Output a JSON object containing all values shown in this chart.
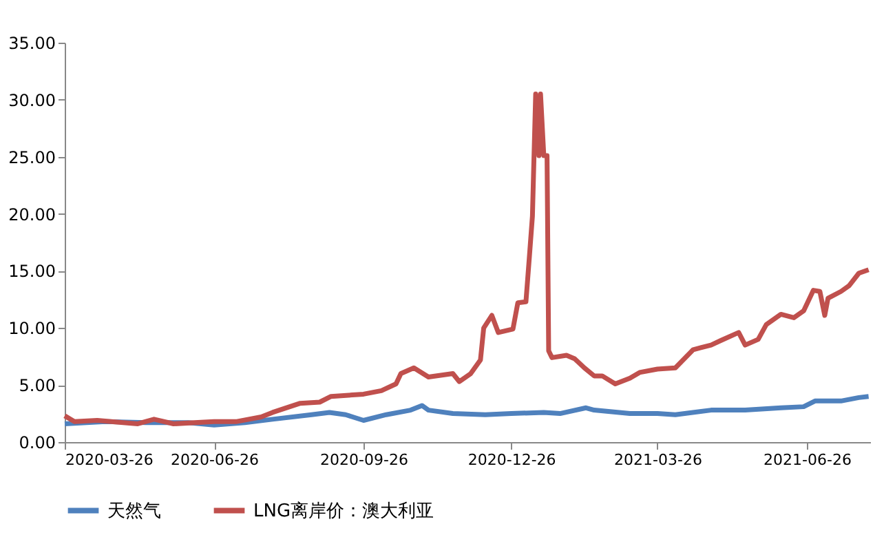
{
  "chart_data": {
    "type": "line",
    "xlim": [
      "2020-03-26",
      "2021-08-04"
    ],
    "xticks": [
      "2020-03-26",
      "2020-06-26",
      "2020-09-26",
      "2020-12-26",
      "2021-03-26",
      "2021-06-26"
    ],
    "ylim": [
      0,
      35
    ],
    "yticks": [
      {
        "value": 0,
        "label": "0.00"
      },
      {
        "value": 5,
        "label": "5.00"
      },
      {
        "value": 10,
        "label": "10.00"
      },
      {
        "value": 15,
        "label": "15.00"
      },
      {
        "value": 20,
        "label": "20.00"
      },
      {
        "value": 25,
        "label": "25.00"
      },
      {
        "value": 30,
        "label": "30.00"
      },
      {
        "value": 35,
        "label": "35.00"
      }
    ],
    "grid": false,
    "legend": "bottom",
    "marker": "none",
    "line_style": "solid",
    "series": [
      {
        "name": "天然气",
        "color": "#4f81bd",
        "x": [
          "2020-03-26",
          "2020-04-20",
          "2020-05-15",
          "2020-06-10",
          "2020-06-26",
          "2020-07-15",
          "2020-08-01",
          "2020-08-25",
          "2020-09-05",
          "2020-09-15",
          "2020-09-26",
          "2020-10-10",
          "2020-10-25",
          "2020-11-01",
          "2020-11-05",
          "2020-11-20",
          "2020-12-10",
          "2020-12-26",
          "2021-01-15",
          "2021-01-25",
          "2021-02-10",
          "2021-02-15",
          "2021-03-09",
          "2021-03-26",
          "2021-04-06",
          "2021-04-28",
          "2021-05-19",
          "2021-06-10",
          "2021-06-24",
          "2021-07-01",
          "2021-07-17",
          "2021-07-28",
          "2021-08-03"
        ],
        "values": [
          1.6,
          1.8,
          1.7,
          1.7,
          1.5,
          1.7,
          2.0,
          2.4,
          2.6,
          2.4,
          1.9,
          2.4,
          2.8,
          3.2,
          2.8,
          2.5,
          2.4,
          2.5,
          2.6,
          2.5,
          3.0,
          2.8,
          2.5,
          2.5,
          2.4,
          2.8,
          2.8,
          3.0,
          3.1,
          3.6,
          3.6,
          3.9,
          4.0
        ]
      },
      {
        "name": "LNG离岸价：澳大利亚",
        "color": "#c0504d",
        "x": [
          "2020-03-26",
          "2020-04-01",
          "2020-04-15",
          "2020-05-01",
          "2020-05-10",
          "2020-05-20",
          "2020-06-01",
          "2020-06-26",
          "2020-07-10",
          "2020-07-25",
          "2020-08-01",
          "2020-08-18",
          "2020-08-30",
          "2020-09-06",
          "2020-09-26",
          "2020-10-07",
          "2020-10-16",
          "2020-10-19",
          "2020-10-27",
          "2020-11-05",
          "2020-11-20",
          "2020-11-24",
          "2020-12-01",
          "2020-12-07",
          "2020-12-09",
          "2020-12-14",
          "2020-12-18",
          "2020-12-27",
          "2020-12-30",
          "2021-01-04",
          "2021-01-06",
          "2021-01-08",
          "2021-01-10",
          "2021-01-12",
          "2021-01-13",
          "2021-01-15",
          "2021-01-17",
          "2021-01-18",
          "2021-01-20",
          "2021-01-29",
          "2021-02-03",
          "2021-02-09",
          "2021-02-15",
          "2021-02-20",
          "2021-02-28",
          "2021-03-09",
          "2021-03-15",
          "2021-03-26",
          "2021-04-06",
          "2021-04-17",
          "2021-04-28",
          "2021-05-04",
          "2021-05-15",
          "2021-05-19",
          "2021-05-27",
          "2021-06-01",
          "2021-06-10",
          "2021-06-18",
          "2021-06-24",
          "2021-06-30",
          "2021-07-04",
          "2021-07-07",
          "2021-07-09",
          "2021-07-17",
          "2021-07-22",
          "2021-07-28",
          "2021-08-03"
        ],
        "values": [
          2.3,
          1.8,
          1.9,
          1.7,
          1.6,
          2.0,
          1.6,
          1.8,
          1.8,
          2.2,
          2.6,
          3.4,
          3.5,
          4.0,
          4.2,
          4.5,
          5.1,
          6.0,
          6.5,
          5.7,
          6.0,
          5.3,
          6.0,
          7.2,
          10.0,
          11.1,
          9.6,
          9.9,
          12.2,
          12.3,
          16.0,
          19.8,
          30.5,
          25.1,
          30.5,
          25.1,
          25.1,
          8.0,
          7.4,
          7.6,
          7.3,
          6.5,
          5.8,
          5.8,
          5.1,
          5.6,
          6.1,
          6.4,
          6.5,
          8.1,
          8.5,
          8.9,
          9.6,
          8.5,
          9.0,
          10.3,
          11.2,
          10.9,
          11.5,
          13.3,
          13.2,
          11.1,
          12.6,
          13.2,
          13.7,
          14.8,
          15.1
        ]
      }
    ]
  }
}
